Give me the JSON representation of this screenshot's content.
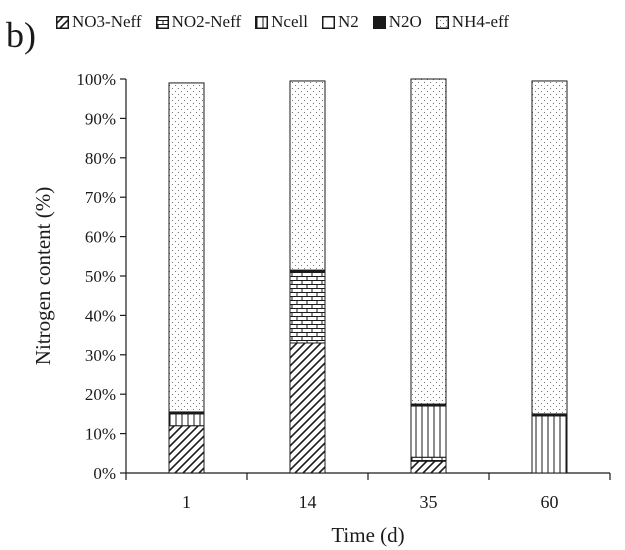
{
  "panel_label": "b)",
  "chart_data": {
    "type": "bar",
    "stacked": true,
    "categories": [
      "1",
      "14",
      "35",
      "60"
    ],
    "series": [
      {
        "name": "NO3-Neff",
        "pattern": "diagonal",
        "values": [
          12,
          33,
          3,
          0
        ]
      },
      {
        "name": "NO2-Neff",
        "pattern": "brick",
        "values": [
          0,
          18,
          1,
          0
        ]
      },
      {
        "name": "Ncell",
        "pattern": "vertical",
        "values": [
          3,
          0,
          13,
          14.5
        ]
      },
      {
        "name": "N2",
        "pattern": "empty",
        "values": [
          0,
          0,
          0,
          0
        ]
      },
      {
        "name": "N2O",
        "pattern": "solid",
        "values": [
          0.5,
          0.5,
          0.5,
          0.5
        ]
      },
      {
        "name": "NH4-eff",
        "pattern": "dots",
        "values": [
          83.5,
          48,
          82.5,
          84.5
        ]
      }
    ],
    "xlabel": "Time (d)",
    "ylabel": "Nitrogen content (%)",
    "ylim": [
      0,
      100
    ],
    "yticks": [
      "0%",
      "10%",
      "20%",
      "30%",
      "40%",
      "50%",
      "60%",
      "70%",
      "80%",
      "90%",
      "100%"
    ],
    "grid": false,
    "legend_position": "top"
  }
}
